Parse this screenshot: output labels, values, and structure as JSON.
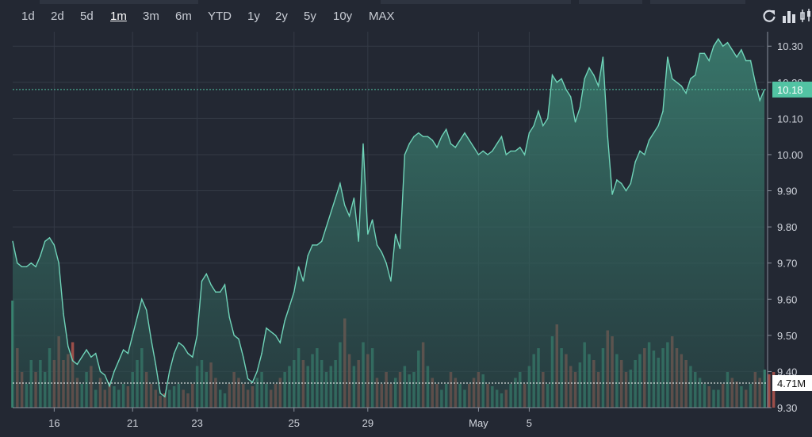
{
  "toolbar": {
    "timeframes": [
      "1d",
      "2d",
      "5d",
      "1m",
      "3m",
      "6m",
      "YTD",
      "1y",
      "2y",
      "5y",
      "10y",
      "MAX"
    ],
    "active": "1m",
    "icons": [
      "refresh-icon",
      "bar-chart-icon",
      "candlestick-icon"
    ]
  },
  "colors": {
    "background": "#232833",
    "line": "#6fd3b8",
    "area_top": "#3f8f7c",
    "volume_up": "#3e9a80",
    "volume_down": "#b2554d",
    "grid": "#343a46",
    "price_tag": "#52c3a3",
    "volume_tag": "#ffffff"
  },
  "chart_data": {
    "type": "area",
    "ylim": [
      9.3,
      10.34
    ],
    "y_ticks": [
      "9.30",
      "9.40",
      "9.50",
      "9.60",
      "9.70",
      "9.80",
      "9.90",
      "10.00",
      "10.10",
      "10.20",
      "10.30"
    ],
    "x_ticks": [
      "16",
      "21",
      "23",
      "25",
      "29",
      "May",
      "5"
    ],
    "last_price": "10.18",
    "last_price_value": 10.18,
    "volume_label": "4.71M",
    "price": [
      9.76,
      9.7,
      9.69,
      9.69,
      9.7,
      9.69,
      9.72,
      9.76,
      9.77,
      9.75,
      9.7,
      9.56,
      9.47,
      9.43,
      9.42,
      9.44,
      9.46,
      9.44,
      9.45,
      9.4,
      9.39,
      9.36,
      9.4,
      9.43,
      9.46,
      9.45,
      9.5,
      9.55,
      9.6,
      9.57,
      9.49,
      9.42,
      9.34,
      9.33,
      9.4,
      9.45,
      9.48,
      9.47,
      9.45,
      9.44,
      9.5,
      9.65,
      9.67,
      9.64,
      9.62,
      9.62,
      9.64,
      9.55,
      9.5,
      9.49,
      9.44,
      9.38,
      9.37,
      9.4,
      9.45,
      9.52,
      9.51,
      9.5,
      9.48,
      9.54,
      9.58,
      9.62,
      9.69,
      9.65,
      9.72,
      9.75,
      9.75,
      9.76,
      9.8,
      9.84,
      9.88,
      9.92,
      9.86,
      9.83,
      9.88,
      9.76,
      10.03,
      9.78,
      9.82,
      9.75,
      9.73,
      9.7,
      9.65,
      9.78,
      9.74,
      10.0,
      10.03,
      10.05,
      10.06,
      10.05,
      10.05,
      10.04,
      10.02,
      10.05,
      10.07,
      10.03,
      10.02,
      10.04,
      10.06,
      10.04,
      10.02,
      10.0,
      10.01,
      10.0,
      10.01,
      10.03,
      10.05,
      10.0,
      10.01,
      10.01,
      10.02,
      10.0,
      10.06,
      10.08,
      10.12,
      10.08,
      10.1,
      10.22,
      10.2,
      10.21,
      10.18,
      10.16,
      10.09,
      10.13,
      10.21,
      10.24,
      10.22,
      10.19,
      10.27,
      10.05,
      9.89,
      9.93,
      9.92,
      9.9,
      9.92,
      9.98,
      10.01,
      10.0,
      10.04,
      10.06,
      10.08,
      10.12,
      10.27,
      10.21,
      10.2,
      10.19,
      10.17,
      10.21,
      10.22,
      10.28,
      10.28,
      10.26,
      10.3,
      10.32,
      10.3,
      10.31,
      10.29,
      10.27,
      10.29,
      10.26,
      10.26,
      10.2,
      10.15,
      10.18
    ],
    "volume": [
      0.9,
      0.5,
      0.3,
      0.2,
      0.4,
      0.3,
      0.4,
      0.3,
      0.5,
      0.4,
      0.6,
      0.4,
      0.45,
      0.55,
      0.25,
      0.2,
      0.3,
      0.35,
      0.15,
      0.25,
      0.15,
      0.2,
      0.18,
      0.15,
      0.2,
      0.18,
      0.3,
      0.4,
      0.5,
      0.3,
      0.2,
      0.15,
      0.1,
      0.12,
      0.15,
      0.18,
      0.2,
      0.15,
      0.12,
      0.2,
      0.35,
      0.4,
      0.3,
      0.38,
      0.25,
      0.15,
      0.12,
      0.2,
      0.3,
      0.25,
      0.2,
      0.15,
      0.18,
      0.25,
      0.3,
      0.2,
      0.15,
      0.2,
      0.25,
      0.3,
      0.35,
      0.4,
      0.5,
      0.4,
      0.35,
      0.45,
      0.5,
      0.4,
      0.3,
      0.35,
      0.4,
      0.55,
      0.75,
      0.45,
      0.35,
      0.4,
      0.55,
      0.45,
      0.5,
      0.25,
      0.2,
      0.3,
      0.2,
      0.25,
      0.3,
      0.35,
      0.28,
      0.3,
      0.48,
      0.55,
      0.35,
      0.25,
      0.2,
      0.15,
      0.2,
      0.3,
      0.25,
      0.2,
      0.15,
      0.2,
      0.25,
      0.3,
      0.28,
      0.2,
      0.18,
      0.15,
      0.12,
      0.15,
      0.2,
      0.25,
      0.3,
      0.2,
      0.35,
      0.45,
      0.5,
      0.3,
      0.2,
      0.6,
      0.7,
      0.5,
      0.45,
      0.35,
      0.3,
      0.38,
      0.55,
      0.45,
      0.4,
      0.3,
      0.5,
      0.65,
      0.6,
      0.45,
      0.4,
      0.3,
      0.32,
      0.4,
      0.45,
      0.5,
      0.55,
      0.48,
      0.42,
      0.5,
      0.55,
      0.6,
      0.5,
      0.45,
      0.4,
      0.35,
      0.3,
      0.25,
      0.2,
      0.18,
      0.15,
      0.15,
      0.2,
      0.3,
      0.25,
      0.22,
      0.18,
      0.15,
      0.2,
      0.3,
      0.25,
      0.32,
      0.28,
      0.3
    ],
    "x_tick_index": [
      9,
      26,
      40,
      61,
      77,
      101,
      112
    ],
    "grid": true,
    "legend": "none"
  }
}
